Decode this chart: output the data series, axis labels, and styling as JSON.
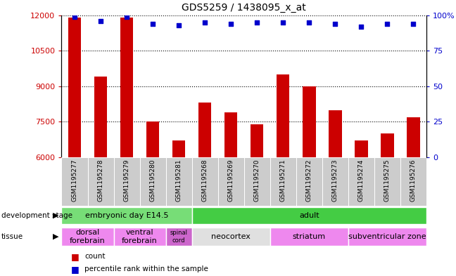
{
  "title": "GDS5259 / 1438095_x_at",
  "samples": [
    "GSM1195277",
    "GSM1195278",
    "GSM1195279",
    "GSM1195280",
    "GSM1195281",
    "GSM1195268",
    "GSM1195269",
    "GSM1195270",
    "GSM1195271",
    "GSM1195272",
    "GSM1195273",
    "GSM1195274",
    "GSM1195275",
    "GSM1195276"
  ],
  "counts": [
    11900,
    9400,
    11900,
    7500,
    6700,
    8300,
    7900,
    7400,
    9500,
    9000,
    8000,
    6700,
    7000,
    7700
  ],
  "percentiles": [
    99,
    96,
    99,
    94,
    93,
    95,
    94,
    95,
    95,
    95,
    94,
    92,
    94,
    94
  ],
  "ymin": 6000,
  "ymax": 12000,
  "yticks_left": [
    6000,
    7500,
    9000,
    10500,
    12000
  ],
  "pct_min": 0,
  "pct_max": 100,
  "yticks_right": [
    0,
    25,
    50,
    75,
    100
  ],
  "bar_color": "#cc0000",
  "dot_color": "#0000cc",
  "dev_stage_groups": [
    {
      "label": "embryonic day E14.5",
      "start": 0,
      "end": 5,
      "color": "#77dd77"
    },
    {
      "label": "adult",
      "start": 5,
      "end": 14,
      "color": "#44cc44"
    }
  ],
  "tissue_groups": [
    {
      "label": "dorsal\nforebrain",
      "start": 0,
      "end": 2,
      "color": "#ee88ee"
    },
    {
      "label": "ventral\nforebrain",
      "start": 2,
      "end": 4,
      "color": "#ee88ee"
    },
    {
      "label": "spinal\ncord",
      "start": 4,
      "end": 5,
      "color": "#cc66cc"
    },
    {
      "label": "neocortex",
      "start": 5,
      "end": 8,
      "color": "#e0e0e0"
    },
    {
      "label": "striatum",
      "start": 8,
      "end": 11,
      "color": "#ee88ee"
    },
    {
      "label": "subventricular zone",
      "start": 11,
      "end": 14,
      "color": "#ee88ee"
    }
  ],
  "bar_width": 0.5,
  "dot_size": 18,
  "title_fontsize": 10,
  "tick_fontsize": 8,
  "label_fontsize": 7.5,
  "sample_fontsize": 6.5,
  "annot_fontsize": 8,
  "cell_color": "#cccccc"
}
